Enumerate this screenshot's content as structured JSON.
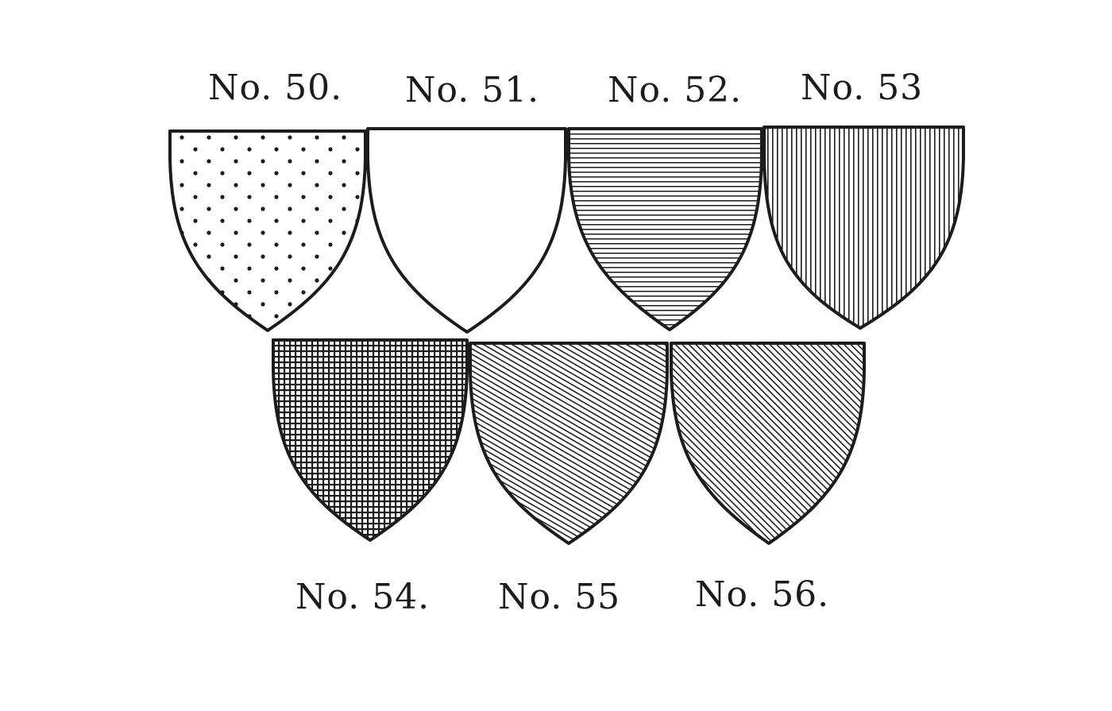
{
  "figure": {
    "shields": [
      {
        "label": "No. 50.",
        "tincture_pattern": "dots"
      },
      {
        "label": "No. 51.",
        "tincture_pattern": "plain"
      },
      {
        "label": "No. 52.",
        "tincture_pattern": "horizontal-lines"
      },
      {
        "label": "No. 53",
        "tincture_pattern": "vertical-lines"
      },
      {
        "label": "No. 54.",
        "tincture_pattern": "crosshatch"
      },
      {
        "label": "No. 55",
        "tincture_pattern": "diagonal-lines-dexter"
      },
      {
        "label": "No. 56.",
        "tincture_pattern": "diagonal-lines-sinister"
      }
    ]
  },
  "colors": {
    "ink": "#1c1c1c",
    "paper": "#ffffff"
  }
}
